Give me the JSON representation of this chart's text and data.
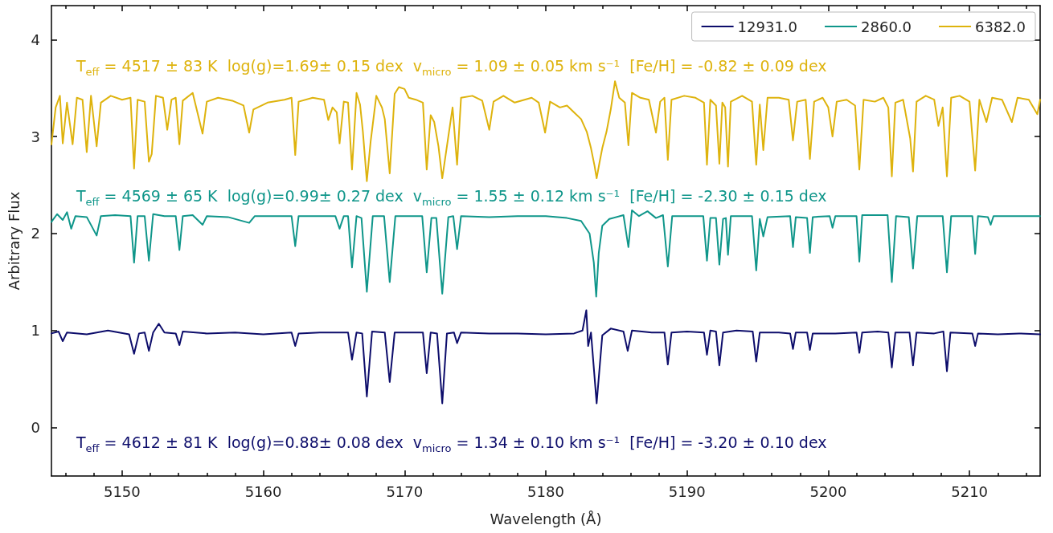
{
  "chart_data": {
    "type": "line",
    "xlabel": "Wavelength (Å)",
    "ylabel": "Arbitrary Flux",
    "xlim": [
      5145,
      5215
    ],
    "ylim": [
      -0.5,
      4.35
    ],
    "xticks": [
      {
        "value": 5146,
        "label": null
      },
      {
        "value": 5148,
        "label": null
      },
      5150,
      {
        "value": 5152,
        "label": null
      },
      {
        "value": 5154,
        "label": null
      },
      {
        "value": 5156,
        "label": null
      },
      {
        "value": 5158,
        "label": null
      },
      5160,
      {
        "value": 5162,
        "label": null
      },
      {
        "value": 5164,
        "label": null
      },
      {
        "value": 5166,
        "label": null
      },
      {
        "value": 5168,
        "label": null
      },
      5170,
      {
        "value": 5172,
        "label": null
      },
      {
        "value": 5174,
        "label": null
      },
      {
        "value": 5176,
        "label": null
      },
      {
        "value": 5178,
        "label": null
      },
      5180,
      {
        "value": 5182,
        "label": null
      },
      {
        "value": 5184,
        "label": null
      },
      {
        "value": 5186,
        "label": null
      },
      {
        "value": 5188,
        "label": null
      },
      5190,
      {
        "value": 5192,
        "label": null
      },
      {
        "value": 5194,
        "label": null
      },
      {
        "value": 5196,
        "label": null
      },
      {
        "value": 5198,
        "label": null
      },
      5200,
      {
        "value": 5202,
        "label": null
      },
      {
        "value": 5204,
        "label": null
      },
      {
        "value": 5206,
        "label": null
      },
      {
        "value": 5208,
        "label": null
      },
      5210,
      {
        "value": 5212,
        "label": null
      },
      {
        "value": 5214,
        "label": null
      }
    ],
    "yticks": [
      0,
      1,
      2,
      3,
      4
    ],
    "grid": false,
    "legend": "top right",
    "marker": "none",
    "line_style": "solid",
    "annotations": [
      "T$_{eff}$ = 4612 ± 81 K  log(g)=0.88± 0.08 dex  v$_{micro}$ = 1.34 ± 0.10 km s⁻¹  [Fe/H] = -3.20 ± 0.10 dex",
      "T$_{eff}$ = 4569 ± 65 K  log(g)=0.99± 0.27 dex  v$_{micro}$ = 1.55 ± 0.12 km s⁻¹  [Fe/H] = -2.30 ± 0.15 dex",
      "T$_{eff}$ = 4517 ± 83 K  log(g)=1.69± 0.15 dex  v$_{micro}$ = 1.09 ± 0.05 km s⁻¹  [Fe/H] = -0.82 ± 0.09 dex"
    ],
    "series": [
      {
        "name": "12931.0",
        "color": "#0d0d6b",
        "x": [
          5145.0,
          5145.5,
          5145.8,
          5146.1,
          5147.5,
          5149.0,
          5150.5,
          5150.85,
          5151.2,
          5151.6,
          5151.9,
          5152.2,
          5152.6,
          5153.0,
          5153.8,
          5154.06,
          5154.3,
          5156.0,
          5158.0,
          5160.0,
          5162.0,
          5162.26,
          5162.5,
          5164.0,
          5166.0,
          5166.28,
          5166.6,
          5167.0,
          5167.33,
          5167.7,
          5168.6,
          5168.95,
          5169.3,
          5171.3,
          5171.57,
          5171.85,
          5172.3,
          5172.67,
          5173.0,
          5173.5,
          5173.72,
          5174.0,
          5176.0,
          5178.0,
          5180.0,
          5182.0,
          5182.6,
          5182.87,
          5183.0,
          5183.2,
          5183.6,
          5184.0,
          5184.6,
          5185.5,
          5185.8,
          5186.1,
          5187.5,
          5188.4,
          5188.64,
          5188.9,
          5190.0,
          5191.2,
          5191.41,
          5191.65,
          5192.05,
          5192.29,
          5192.55,
          5193.5,
          5194.65,
          5194.9,
          5195.15,
          5196.5,
          5197.3,
          5197.5,
          5197.7,
          5198.5,
          5198.7,
          5198.9,
          5200.5,
          5202.0,
          5202.2,
          5202.4,
          5203.5,
          5204.25,
          5204.5,
          5204.75,
          5205.75,
          5206.0,
          5206.25,
          5207.5,
          5208.15,
          5208.4,
          5208.65,
          5210.2,
          5210.4,
          5210.6,
          5212.0,
          5213.5,
          5215.0
        ],
        "values": [
          0.97,
          0.99,
          0.89,
          0.98,
          0.96,
          1.0,
          0.96,
          0.76,
          0.97,
          0.98,
          0.79,
          0.98,
          1.07,
          0.98,
          0.97,
          0.85,
          0.99,
          0.97,
          0.98,
          0.96,
          0.98,
          0.84,
          0.97,
          0.98,
          0.98,
          0.7,
          0.98,
          0.97,
          0.32,
          0.99,
          0.98,
          0.47,
          0.98,
          0.98,
          0.56,
          0.98,
          0.97,
          0.25,
          0.97,
          0.98,
          0.87,
          0.98,
          0.97,
          0.97,
          0.96,
          0.97,
          1.0,
          1.21,
          0.84,
          0.98,
          0.25,
          0.95,
          1.02,
          0.99,
          0.79,
          1.0,
          0.98,
          0.98,
          0.65,
          0.98,
          0.99,
          0.98,
          0.75,
          1.0,
          0.99,
          0.64,
          0.98,
          1.0,
          0.99,
          0.68,
          0.98,
          0.98,
          0.97,
          0.81,
          0.98,
          0.98,
          0.8,
          0.97,
          0.97,
          0.98,
          0.77,
          0.98,
          0.99,
          0.98,
          0.62,
          0.98,
          0.98,
          0.64,
          0.98,
          0.97,
          0.99,
          0.58,
          0.98,
          0.97,
          0.84,
          0.97,
          0.96,
          0.97,
          0.96
        ]
      },
      {
        "name": "2860.0",
        "color": "#0f968a",
        "x": [
          5145.0,
          5145.4,
          5145.8,
          5146.1,
          5146.4,
          5146.7,
          5147.5,
          5148.2,
          5148.5,
          5149.5,
          5150.6,
          5150.85,
          5151.1,
          5151.6,
          5151.9,
          5152.2,
          5153.0,
          5153.8,
          5154.06,
          5154.3,
          5155.0,
          5155.7,
          5156.0,
          5157.5,
          5159.0,
          5159.4,
          5161.0,
          5162.0,
          5162.26,
          5162.5,
          5164.0,
          5165.1,
          5165.4,
          5165.7,
          5166.0,
          5166.28,
          5166.6,
          5166.95,
          5167.33,
          5167.75,
          5168.55,
          5168.95,
          5169.35,
          5171.25,
          5171.57,
          5171.9,
          5172.25,
          5172.67,
          5173.1,
          5173.45,
          5173.72,
          5174.0,
          5176.0,
          5178.0,
          5180.0,
          5181.5,
          5182.5,
          5183.1,
          5183.4,
          5183.57,
          5183.75,
          5184.0,
          5184.5,
          5185.5,
          5185.85,
          5186.1,
          5186.6,
          5187.2,
          5187.8,
          5188.3,
          5188.64,
          5188.95,
          5190.0,
          5191.15,
          5191.41,
          5191.65,
          5192.05,
          5192.29,
          5192.55,
          5192.75,
          5192.9,
          5193.1,
          5194.6,
          5194.9,
          5195.15,
          5195.4,
          5195.7,
          5197.3,
          5197.5,
          5197.7,
          5198.5,
          5198.7,
          5198.9,
          5200.1,
          5200.3,
          5200.5,
          5202.0,
          5202.2,
          5202.4,
          5204.2,
          5204.5,
          5204.8,
          5205.7,
          5206.0,
          5206.3,
          5208.1,
          5208.4,
          5208.7,
          5210.2,
          5210.4,
          5210.6,
          5211.3,
          5211.5,
          5211.7,
          5213.5,
          5215.0
        ],
        "values": [
          2.12,
          2.2,
          2.14,
          2.22,
          2.05,
          2.18,
          2.17,
          1.98,
          2.18,
          2.19,
          2.18,
          1.7,
          2.18,
          2.18,
          1.72,
          2.2,
          2.18,
          2.18,
          1.83,
          2.18,
          2.19,
          2.09,
          2.18,
          2.17,
          2.11,
          2.18,
          2.18,
          2.18,
          1.87,
          2.18,
          2.18,
          2.18,
          2.05,
          2.18,
          2.18,
          1.65,
          2.18,
          2.16,
          1.4,
          2.18,
          2.18,
          1.5,
          2.18,
          2.18,
          1.6,
          2.16,
          2.16,
          1.38,
          2.17,
          2.18,
          1.84,
          2.18,
          2.17,
          2.18,
          2.18,
          2.16,
          2.13,
          2.0,
          1.7,
          1.35,
          1.8,
          2.08,
          2.15,
          2.19,
          1.86,
          2.24,
          2.18,
          2.23,
          2.16,
          2.19,
          1.66,
          2.18,
          2.18,
          2.18,
          1.72,
          2.16,
          2.16,
          1.68,
          2.15,
          2.16,
          1.78,
          2.18,
          2.18,
          1.62,
          2.15,
          1.97,
          2.17,
          2.18,
          1.86,
          2.17,
          2.16,
          1.8,
          2.17,
          2.18,
          2.06,
          2.18,
          2.18,
          1.71,
          2.19,
          2.19,
          1.5,
          2.18,
          2.17,
          1.64,
          2.18,
          2.18,
          1.6,
          2.18,
          2.18,
          1.79,
          2.18,
          2.17,
          2.09,
          2.18,
          2.18,
          2.18
        ]
      },
      {
        "name": "6382.0",
        "color": "#deb30d",
        "x": [
          5145.0,
          5145.3,
          5145.6,
          5145.8,
          5146.1,
          5146.5,
          5146.8,
          5147.2,
          5147.5,
          5147.8,
          5148.2,
          5148.5,
          5149.2,
          5150.0,
          5150.6,
          5150.85,
          5151.1,
          5151.6,
          5151.9,
          5152.1,
          5152.4,
          5152.9,
          5153.2,
          5153.5,
          5153.8,
          5154.06,
          5154.3,
          5155.0,
          5155.7,
          5156.0,
          5156.8,
          5157.8,
          5158.6,
          5159.0,
          5159.3,
          5160.3,
          5161.5,
          5162.0,
          5162.26,
          5162.5,
          5163.5,
          5164.3,
          5164.6,
          5164.9,
          5165.2,
          5165.4,
          5165.7,
          5166.0,
          5166.28,
          5166.6,
          5166.85,
          5167.05,
          5167.33,
          5167.6,
          5168.0,
          5168.4,
          5168.6,
          5168.95,
          5169.3,
          5169.6,
          5170.0,
          5170.3,
          5170.8,
          5171.3,
          5171.57,
          5171.85,
          5172.1,
          5172.4,
          5172.67,
          5173.0,
          5173.4,
          5173.72,
          5174.0,
          5174.8,
          5175.5,
          5176.0,
          5176.3,
          5177.0,
          5177.8,
          5178.5,
          5179.0,
          5179.5,
          5179.95,
          5180.3,
          5181.0,
          5181.5,
          5182.0,
          5182.5,
          5182.9,
          5183.2,
          5183.45,
          5183.6,
          5183.8,
          5184.0,
          5184.3,
          5184.6,
          5184.9,
          5185.2,
          5185.6,
          5185.85,
          5186.1,
          5186.7,
          5187.3,
          5187.8,
          5188.1,
          5188.4,
          5188.64,
          5188.9,
          5189.8,
          5190.6,
          5191.2,
          5191.41,
          5191.65,
          5192.05,
          5192.29,
          5192.5,
          5192.7,
          5192.9,
          5193.1,
          5193.9,
          5194.6,
          5194.9,
          5195.15,
          5195.4,
          5195.7,
          5196.5,
          5197.2,
          5197.5,
          5197.8,
          5198.4,
          5198.7,
          5199.0,
          5199.6,
          5200.0,
          5200.3,
          5200.6,
          5201.3,
          5201.9,
          5202.2,
          5202.5,
          5203.3,
          5203.9,
          5204.25,
          5204.5,
          5204.75,
          5205.3,
          5205.8,
          5206.0,
          5206.25,
          5206.9,
          5207.5,
          5207.8,
          5208.1,
          5208.4,
          5208.7,
          5209.3,
          5210.0,
          5210.4,
          5210.7,
          5211.2,
          5211.6,
          5212.3,
          5213.0,
          5213.4,
          5214.2,
          5214.8,
          5215.0
        ],
        "values": [
          2.92,
          3.3,
          3.42,
          2.93,
          3.35,
          2.92,
          3.4,
          3.38,
          2.84,
          3.42,
          2.9,
          3.35,
          3.42,
          3.38,
          3.4,
          2.67,
          3.38,
          3.36,
          2.74,
          2.82,
          3.42,
          3.4,
          3.07,
          3.38,
          3.4,
          2.92,
          3.37,
          3.45,
          3.03,
          3.36,
          3.4,
          3.37,
          3.32,
          3.04,
          3.28,
          3.35,
          3.38,
          3.4,
          2.81,
          3.36,
          3.4,
          3.38,
          3.17,
          3.3,
          3.25,
          2.93,
          3.36,
          3.35,
          2.66,
          3.45,
          3.33,
          3.05,
          2.54,
          2.95,
          3.42,
          3.3,
          3.18,
          2.62,
          3.44,
          3.51,
          3.49,
          3.4,
          3.38,
          3.35,
          2.66,
          3.22,
          3.15,
          2.9,
          2.57,
          2.9,
          3.3,
          2.71,
          3.4,
          3.42,
          3.37,
          3.07,
          3.36,
          3.42,
          3.35,
          3.38,
          3.4,
          3.35,
          3.04,
          3.36,
          3.3,
          3.32,
          3.25,
          3.18,
          3.05,
          2.88,
          2.7,
          2.57,
          2.73,
          2.88,
          3.05,
          3.28,
          3.57,
          3.4,
          3.35,
          2.91,
          3.45,
          3.4,
          3.38,
          3.04,
          3.36,
          3.4,
          2.76,
          3.38,
          3.42,
          3.4,
          3.35,
          2.71,
          3.38,
          3.32,
          2.72,
          3.35,
          3.3,
          2.69,
          3.36,
          3.42,
          3.36,
          2.71,
          3.33,
          2.86,
          3.4,
          3.4,
          3.38,
          2.96,
          3.36,
          3.38,
          2.77,
          3.36,
          3.4,
          3.3,
          3.0,
          3.36,
          3.38,
          3.32,
          2.66,
          3.38,
          3.36,
          3.4,
          3.3,
          2.59,
          3.35,
          3.38,
          2.98,
          2.64,
          3.36,
          3.42,
          3.38,
          3.11,
          3.3,
          2.59,
          3.4,
          3.42,
          3.36,
          2.65,
          3.38,
          3.15,
          3.4,
          3.38,
          3.15,
          3.4,
          3.38,
          3.23,
          3.38
        ]
      }
    ]
  }
}
